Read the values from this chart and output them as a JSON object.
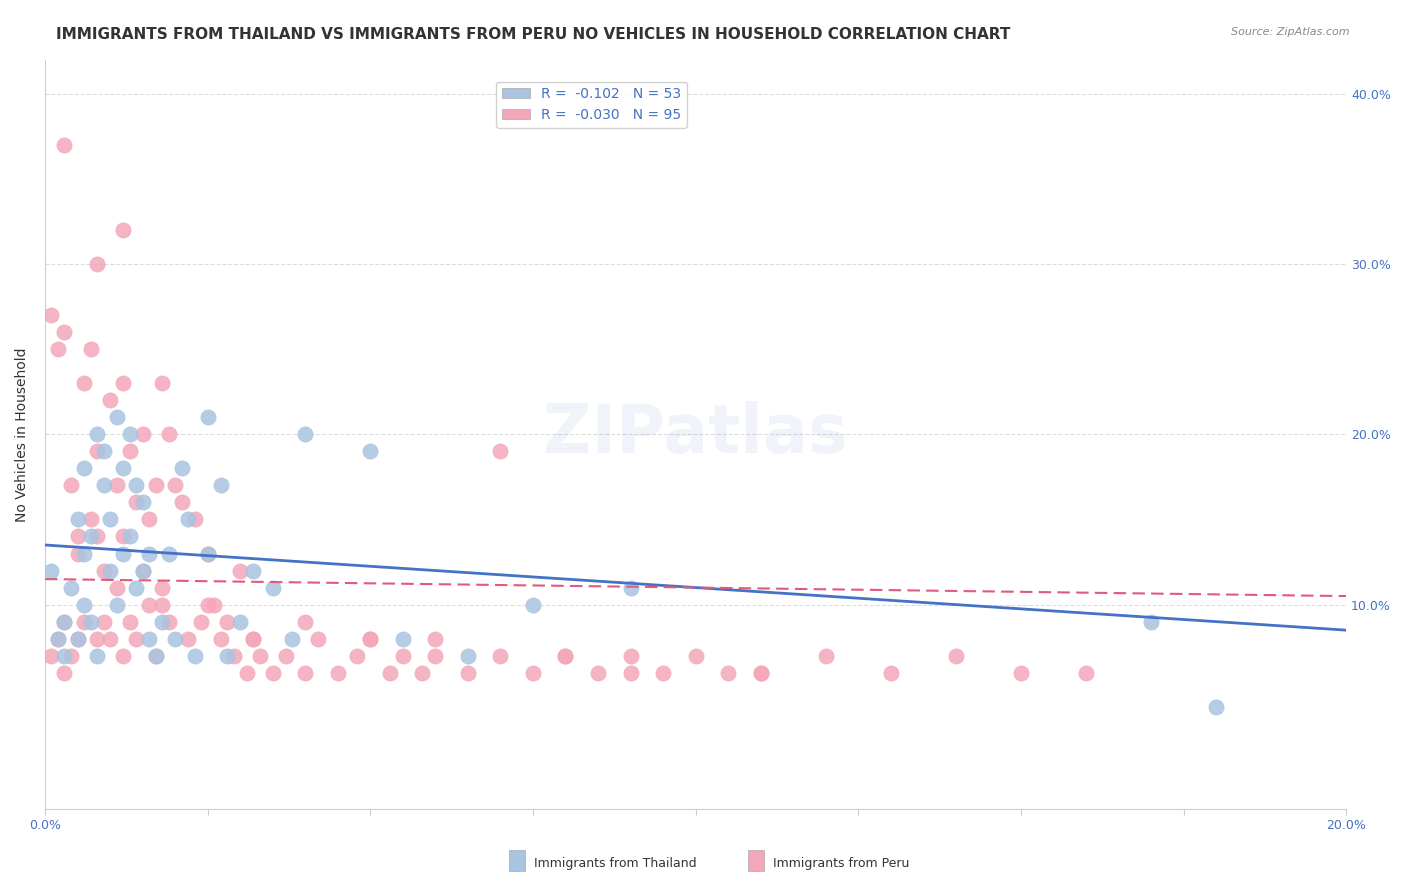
{
  "title": "IMMIGRANTS FROM THAILAND VS IMMIGRANTS FROM PERU NO VEHICLES IN HOUSEHOLD CORRELATION CHART",
  "source": "Source: ZipAtlas.com",
  "ylabel": "No Vehicles in Household",
  "ylabel_right_ticks": [
    "10.0%",
    "20.0%",
    "30.0%",
    "40.0%"
  ],
  "ylabel_right_vals": [
    0.1,
    0.2,
    0.3,
    0.4
  ],
  "xlim": [
    0.0,
    0.2
  ],
  "ylim": [
    -0.02,
    0.42
  ],
  "thailand_color": "#a8c4e0",
  "peru_color": "#f4a7b9",
  "trendline_thailand_color": "#4472c4",
  "trendline_peru_color": "#e05a7a",
  "legend_r_thailand": "R =  -0.102",
  "legend_n_thailand": "N = 53",
  "legend_r_peru": "R =  -0.030",
  "legend_n_peru": "N = 95",
  "watermark": "ZIPatlas",
  "thailand_scatter_x": [
    0.001,
    0.002,
    0.003,
    0.003,
    0.004,
    0.005,
    0.005,
    0.006,
    0.006,
    0.006,
    0.007,
    0.007,
    0.008,
    0.008,
    0.009,
    0.009,
    0.01,
    0.01,
    0.011,
    0.011,
    0.012,
    0.012,
    0.013,
    0.013,
    0.014,
    0.014,
    0.015,
    0.015,
    0.016,
    0.016,
    0.017,
    0.018,
    0.019,
    0.02,
    0.021,
    0.022,
    0.023,
    0.025,
    0.025,
    0.027,
    0.028,
    0.03,
    0.032,
    0.035,
    0.038,
    0.04,
    0.05,
    0.055,
    0.065,
    0.075,
    0.09,
    0.17,
    0.18
  ],
  "thailand_scatter_y": [
    0.12,
    0.08,
    0.07,
    0.09,
    0.11,
    0.15,
    0.08,
    0.1,
    0.13,
    0.18,
    0.09,
    0.14,
    0.07,
    0.2,
    0.17,
    0.19,
    0.12,
    0.15,
    0.21,
    0.1,
    0.13,
    0.18,
    0.2,
    0.14,
    0.17,
    0.11,
    0.12,
    0.16,
    0.13,
    0.08,
    0.07,
    0.09,
    0.13,
    0.08,
    0.18,
    0.15,
    0.07,
    0.21,
    0.13,
    0.17,
    0.07,
    0.09,
    0.12,
    0.11,
    0.08,
    0.2,
    0.19,
    0.08,
    0.07,
    0.1,
    0.11,
    0.09,
    0.04
  ],
  "peru_scatter_x": [
    0.001,
    0.001,
    0.002,
    0.002,
    0.003,
    0.003,
    0.003,
    0.004,
    0.004,
    0.005,
    0.005,
    0.005,
    0.006,
    0.006,
    0.007,
    0.007,
    0.008,
    0.008,
    0.008,
    0.009,
    0.009,
    0.01,
    0.01,
    0.011,
    0.011,
    0.012,
    0.012,
    0.012,
    0.013,
    0.013,
    0.014,
    0.014,
    0.015,
    0.015,
    0.016,
    0.016,
    0.017,
    0.017,
    0.018,
    0.018,
    0.019,
    0.019,
    0.02,
    0.021,
    0.022,
    0.023,
    0.024,
    0.025,
    0.026,
    0.027,
    0.028,
    0.029,
    0.03,
    0.031,
    0.032,
    0.033,
    0.035,
    0.037,
    0.04,
    0.042,
    0.045,
    0.048,
    0.05,
    0.053,
    0.055,
    0.058,
    0.06,
    0.065,
    0.07,
    0.075,
    0.08,
    0.085,
    0.09,
    0.095,
    0.1,
    0.105,
    0.11,
    0.12,
    0.13,
    0.14,
    0.15,
    0.16,
    0.003,
    0.008,
    0.012,
    0.018,
    0.025,
    0.032,
    0.04,
    0.05,
    0.06,
    0.07,
    0.08,
    0.09,
    0.11
  ],
  "peru_scatter_y": [
    0.27,
    0.07,
    0.25,
    0.08,
    0.26,
    0.06,
    0.09,
    0.17,
    0.07,
    0.14,
    0.08,
    0.13,
    0.23,
    0.09,
    0.15,
    0.25,
    0.19,
    0.08,
    0.14,
    0.12,
    0.09,
    0.22,
    0.08,
    0.17,
    0.11,
    0.23,
    0.14,
    0.07,
    0.19,
    0.09,
    0.16,
    0.08,
    0.2,
    0.12,
    0.15,
    0.1,
    0.17,
    0.07,
    0.23,
    0.11,
    0.2,
    0.09,
    0.17,
    0.16,
    0.08,
    0.15,
    0.09,
    0.13,
    0.1,
    0.08,
    0.09,
    0.07,
    0.12,
    0.06,
    0.08,
    0.07,
    0.06,
    0.07,
    0.06,
    0.08,
    0.06,
    0.07,
    0.08,
    0.06,
    0.07,
    0.06,
    0.07,
    0.06,
    0.07,
    0.06,
    0.07,
    0.06,
    0.07,
    0.06,
    0.07,
    0.06,
    0.06,
    0.07,
    0.06,
    0.07,
    0.06,
    0.06,
    0.37,
    0.3,
    0.32,
    0.1,
    0.1,
    0.08,
    0.09,
    0.08,
    0.08,
    0.19,
    0.07,
    0.06,
    0.06
  ],
  "title_fontsize": 11,
  "axis_label_fontsize": 10,
  "tick_fontsize": 9,
  "watermark_fontsize": 48,
  "watermark_alpha": 0.08,
  "background_color": "#ffffff",
  "grid_color": "#dddddd",
  "right_tick_color": "#4472c4",
  "source_color": "#888888"
}
